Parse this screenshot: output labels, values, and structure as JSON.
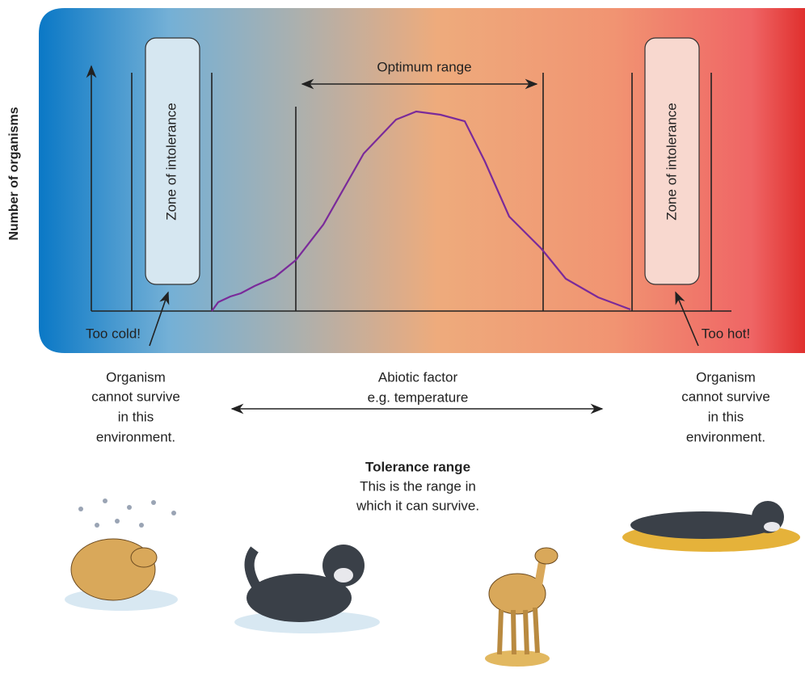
{
  "y_axis_label": "Number of organisms",
  "zones": [
    {
      "label": "Zone of intolerance"
    },
    {
      "label": "Zone of intolerance"
    }
  ],
  "optimum_label": "Optimum range",
  "extremes": {
    "cold": "Too cold!",
    "hot": "Too hot!"
  },
  "notes": [
    {
      "lines": [
        "Organism",
        "cannot survive",
        "in this",
        "environment."
      ]
    },
    {
      "lines": [
        "Organism",
        "cannot survive",
        "in this",
        "environment."
      ]
    }
  ],
  "abiotic": {
    "lines": [
      "Abiotic factor",
      "e.g. temperature"
    ]
  },
  "tolerance": {
    "title": "Tolerance range",
    "lines": [
      "This is the range in",
      "which it can survive."
    ]
  }
}
